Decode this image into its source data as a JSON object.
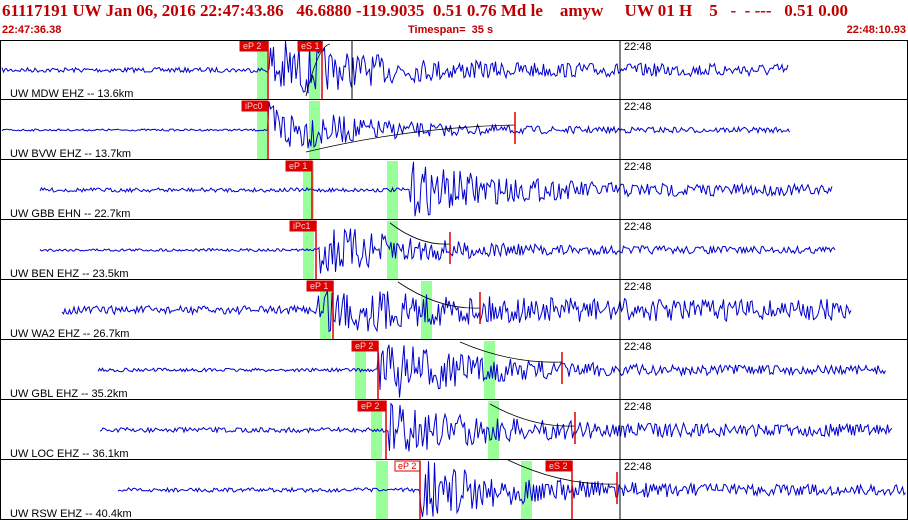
{
  "header": {
    "title": "61117191 UW Jan 06, 2016 22:47:43.86   46.6880 -119.9035  0.51 0.76 Md le    amyw     UW 01 H    5   -  - ---   0.51 0.00",
    "start_time": "22:47:36.38",
    "timespan": "Timespan=  35 s",
    "end_time": "22:48:10.93"
  },
  "colors": {
    "title": "#c00000",
    "trace": "#0000cc",
    "pick": "#dd0000",
    "window": "#99ff99",
    "curve": "#000000",
    "minute_line": "#000000"
  },
  "minute_label": "22:48",
  "channels": [
    {
      "label": "UW MDW EHZ -- 13.6km",
      "picks": [
        {
          "label": "eP 2",
          "style": "filled"
        },
        {
          "label": "eS 1",
          "style": "filled"
        }
      ]
    },
    {
      "label": "UW BVW EHZ -- 13.7km",
      "picks": [
        {
          "label": "iPc0",
          "style": "filled"
        }
      ]
    },
    {
      "label": "UW GBB EHN -- 22.7km",
      "picks": [
        {
          "label": "eP 1",
          "style": "filled"
        }
      ]
    },
    {
      "label": "UW BEN EHZ -- 23.5km",
      "picks": [
        {
          "label": "iPc1",
          "style": "filled"
        }
      ]
    },
    {
      "label": "UW WA2 EHZ -- 26.7km",
      "picks": [
        {
          "label": "eP 1",
          "style": "filled"
        }
      ]
    },
    {
      "label": "UW GBL EHZ -- 35.2km",
      "picks": [
        {
          "label": "eP 2",
          "style": "filled"
        }
      ]
    },
    {
      "label": "UW LOC EHZ -- 36.1km",
      "picks": [
        {
          "label": "eP 2",
          "style": "filled"
        }
      ]
    },
    {
      "label": "UW RSW EHZ -- 40.4km",
      "picks": [
        {
          "label": "eP 2",
          "style": "outline"
        },
        {
          "label": "eS 2",
          "style": "filled"
        }
      ]
    }
  ]
}
